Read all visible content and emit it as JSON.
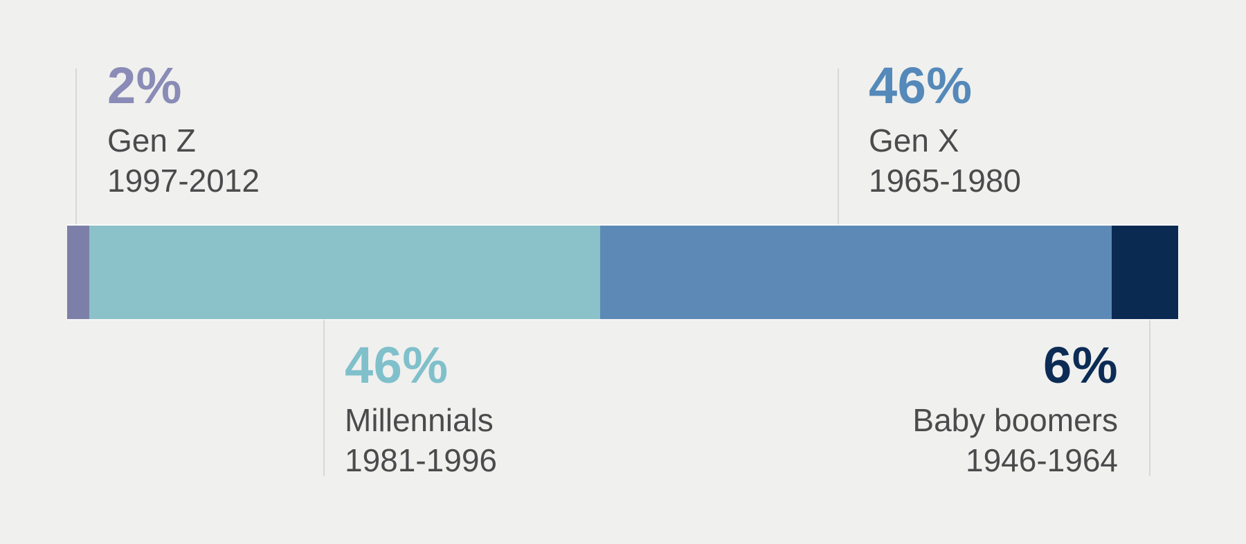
{
  "chart_data": {
    "type": "bar",
    "subtype": "horizontal-stacked-single-bar",
    "title": "",
    "unit": "%",
    "total": 100,
    "legend_position": "callout-labels-with-connector-lines",
    "categories": [
      "Gen Z",
      "Millennials",
      "Gen X",
      "Baby boomers"
    ],
    "values": [
      2,
      46,
      46,
      6
    ],
    "segments": [
      {
        "label": "Gen Z",
        "years": "1997-2012",
        "value": 2,
        "value_label": "2%",
        "bar_color": "#7c7fa8",
        "text_color": "#8a8bb6",
        "label_position": "top-left"
      },
      {
        "label": "Millennials",
        "years": "1981-1996",
        "value": 46,
        "value_label": "46%",
        "bar_color": "#8bc1c9",
        "text_color": "#7fc0cb",
        "label_position": "bottom-left"
      },
      {
        "label": "Gen X",
        "years": "1965-1980",
        "value": 46,
        "value_label": "46%",
        "bar_color": "#5d89b6",
        "text_color": "#5489b9",
        "label_position": "top-right"
      },
      {
        "label": "Baby boomers",
        "years": "1946-1964",
        "value": 6,
        "value_label": "6%",
        "bar_color": "#0b2a52",
        "text_color": "#0c2c55",
        "label_position": "bottom-right"
      }
    ],
    "background_color": "#f0f0ee",
    "connector_line_color": "#d8d8d7",
    "sublabel_text_color": "#4b4b4d"
  }
}
